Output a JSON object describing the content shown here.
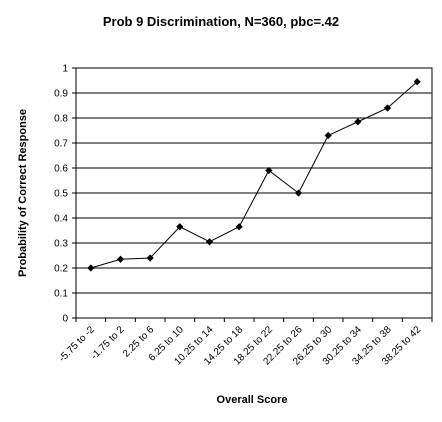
{
  "chart_data": {
    "type": "line",
    "title": "Prob 9 Discrimination, N=360, pbc=.42",
    "xlabel": "Overall Score",
    "ylabel": "Probability of Correct Response",
    "categories": [
      "-5.75 to -2",
      "-1.75 to 2",
      "2.25 to 6",
      "6.25 to 10",
      "10.25 to 14",
      "14.25 to 18",
      "18.25 to 22",
      "22.25 to 26",
      "26.25 to 30",
      "30.25 to 34",
      "34.25 to 38",
      "38.25 to 42"
    ],
    "values": [
      0.2,
      0.235,
      0.24,
      0.365,
      0.305,
      0.365,
      0.59,
      0.5,
      0.73,
      0.785,
      0.84,
      0.945
    ],
    "ylim": [
      0,
      1
    ],
    "yticks": [
      "0",
      "0.1",
      "0.2",
      "0.3",
      "0.4",
      "0.5",
      "0.6",
      "0.7",
      "0.8",
      "0.9",
      "1"
    ],
    "grid": true,
    "legend": "none",
    "line_color": "#000000",
    "marker": "diamond"
  }
}
